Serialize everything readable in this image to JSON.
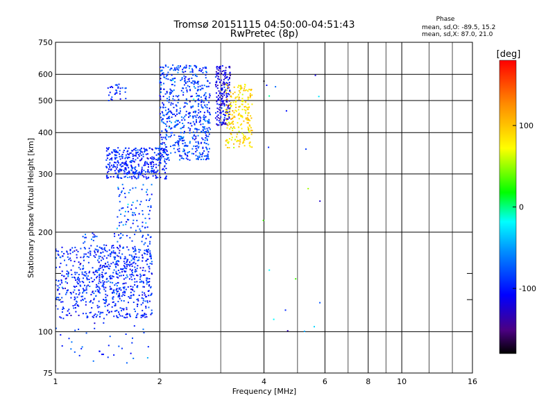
{
  "chart_data": {
    "type": "scatter",
    "title": "Tromsø 20151115 04:50:00-04:51:43",
    "subtitle": "RwPretec (8p)",
    "xlabel": "Frequency [MHz]",
    "ylabel": "Stationary phase Virtual Height [km]",
    "xscale": "log",
    "yscale": "log",
    "xlim": [
      1,
      16
    ],
    "ylim": [
      75,
      750
    ],
    "xticks": [
      1,
      2,
      4,
      6,
      8,
      10,
      16
    ],
    "yticks": [
      75,
      100,
      200,
      300,
      400,
      500,
      600,
      750
    ],
    "grid": true,
    "phase_box": {
      "title": "Phase",
      "line1": "mean, sd,O: -89.5, 15.2",
      "line2": "mean, sd,X:  87.0, 21.0"
    },
    "colorbar": {
      "label": "[deg]",
      "range": [
        -180,
        180
      ],
      "ticks": [
        -100,
        0,
        100
      ],
      "colormap": "rainbow"
    },
    "point_clusters": [
      {
        "x_range": [
          1.0,
          1.9
        ],
        "y_range": [
          110,
          180
        ],
        "phase_mean": -95,
        "phase_sd": 15,
        "count": 600
      },
      {
        "x_range": [
          1.2,
          1.9
        ],
        "y_range": [
          130,
          200
        ],
        "phase_mean": -90,
        "phase_sd": 15,
        "count": 220
      },
      {
        "x_range": [
          1.5,
          1.9
        ],
        "y_range": [
          200,
          280
        ],
        "phase_mean": -80,
        "phase_sd": 20,
        "count": 80
      },
      {
        "x_range": [
          1.4,
          2.1
        ],
        "y_range": [
          290,
          360
        ],
        "phase_mean": -95,
        "phase_sd": 15,
        "count": 380
      },
      {
        "x_range": [
          2.0,
          2.8
        ],
        "y_range": [
          330,
          640
        ],
        "phase_mean": -85,
        "phase_sd": 18,
        "count": 620
      },
      {
        "x_range": [
          2.9,
          3.2
        ],
        "y_range": [
          420,
          640
        ],
        "phase_mean": -115,
        "phase_sd": 15,
        "count": 200
      },
      {
        "x_range": [
          3.1,
          3.7
        ],
        "y_range": [
          360,
          560
        ],
        "phase_mean": 90,
        "phase_sd": 15,
        "count": 220
      },
      {
        "x_range": [
          1.4,
          1.6
        ],
        "y_range": [
          500,
          560
        ],
        "phase_mean": -95,
        "phase_sd": 15,
        "count": 30
      },
      {
        "x_range": [
          1.0,
          1.9
        ],
        "y_range": [
          80,
          110
        ],
        "phase_mean": -90,
        "phase_sd": 20,
        "count": 40
      },
      {
        "x_range": [
          3.9,
          6.0
        ],
        "y_range": [
          95,
          600
        ],
        "phase_mean": -60,
        "phase_sd": 60,
        "count": 20
      }
    ]
  }
}
